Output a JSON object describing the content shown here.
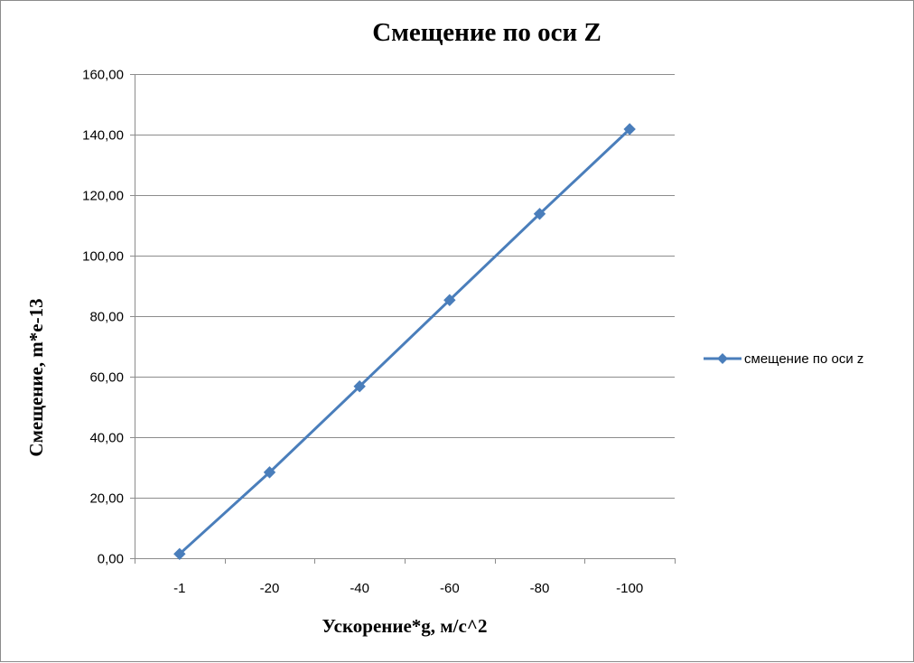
{
  "chart_data": {
    "type": "line",
    "title": "Смещение по оси Z",
    "xlabel": "Ускорение*g, м/с^2",
    "ylabel": "Смещение, m*e-13",
    "categories": [
      "-1",
      "-20",
      "-40",
      "-60",
      "-80",
      "-100"
    ],
    "series": [
      {
        "name": "смещение по оси z",
        "values": [
          1.4,
          28.4,
          56.8,
          85.3,
          113.8,
          141.8
        ],
        "color": "#4a7ebb",
        "marker": "diamond"
      }
    ],
    "ylim": [
      0,
      160
    ],
    "yticks": [
      "0,00",
      "20,00",
      "40,00",
      "60,00",
      "80,00",
      "100,00",
      "120,00",
      "140,00",
      "160,00"
    ],
    "grid": true,
    "legend_position": "right"
  }
}
